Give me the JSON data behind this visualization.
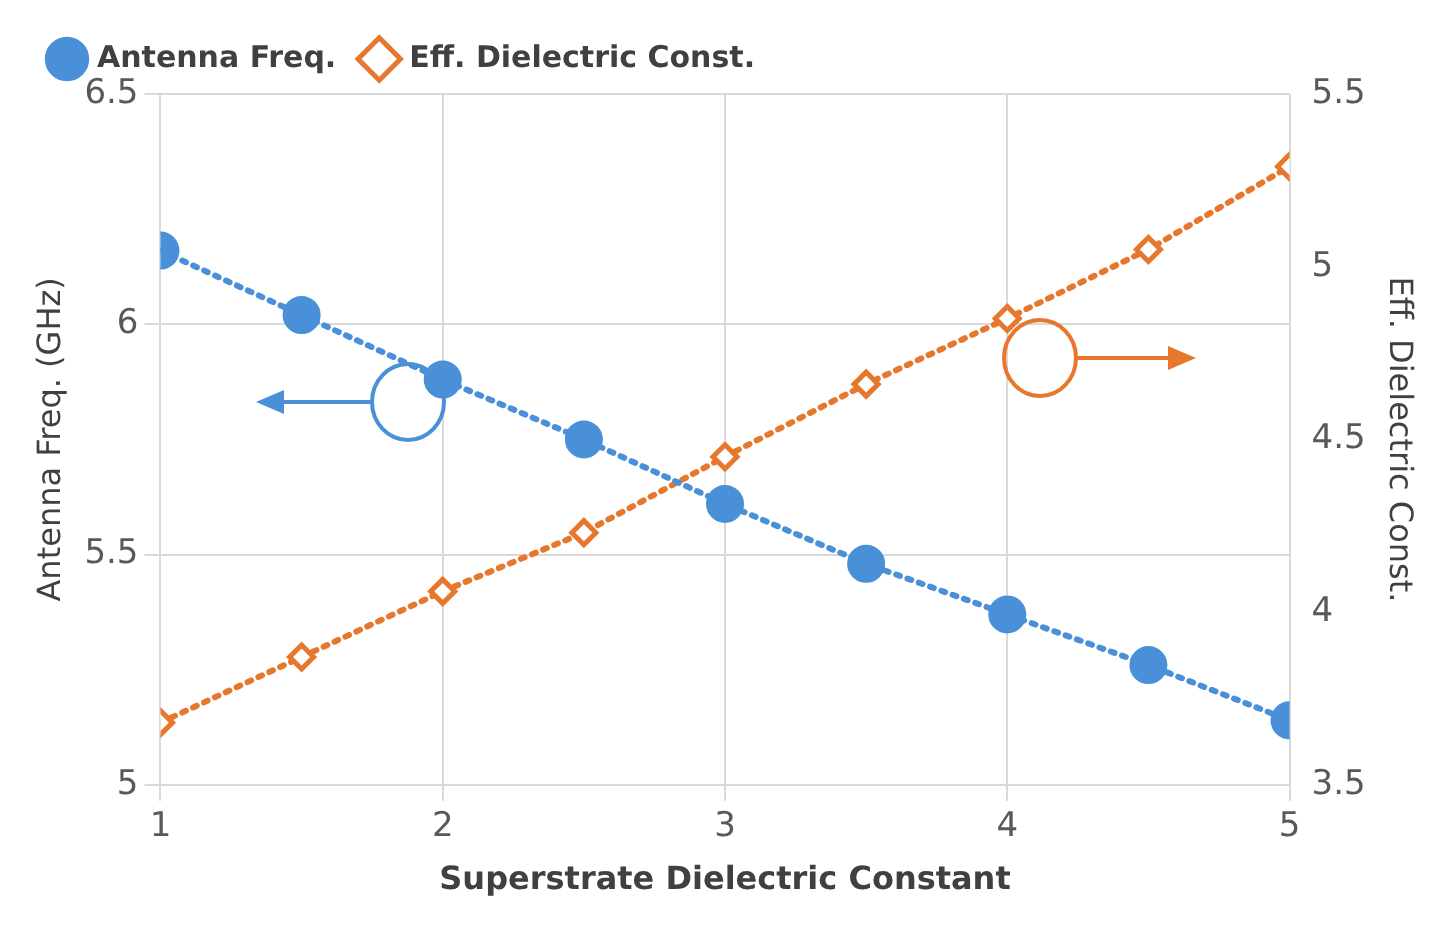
{
  "chart_data": {
    "type": "line",
    "xlabel": "Superstrate Dielectric Constant",
    "ylabel": "Antenna Freq. (GHz)",
    "y2label": "Eff. Dielectric Const.",
    "x": [
      1,
      1.5,
      2,
      2.5,
      3,
      3.5,
      4,
      4.5,
      5
    ],
    "xlim": [
      1,
      5
    ],
    "xticks": [
      1,
      2,
      3,
      4,
      5
    ],
    "ylim": [
      5,
      6.5
    ],
    "yticks": [
      5,
      5.5,
      6,
      6.5
    ],
    "y2lim": [
      3.5,
      5.5
    ],
    "y2ticks": [
      3.5,
      4,
      4.5,
      5,
      5.5
    ],
    "grid": true,
    "legend": "top",
    "line_style": "dotted",
    "series": [
      {
        "name": "Antenna Freq.",
        "color": "#4a90d9",
        "marker": "circle",
        "values": [
          6.16,
          6.02,
          5.88,
          5.75,
          5.61,
          5.48,
          5.37,
          5.26,
          5.14
        ]
      },
      {
        "name": "Eff. Dielectric Const.",
        "color": "#e8772e",
        "marker": "diamond",
        "axis": "y2",
        "values": [
          3.68,
          3.87,
          4.06,
          4.23,
          4.45,
          4.66,
          4.85,
          5.05,
          5.29
        ]
      }
    ]
  }
}
